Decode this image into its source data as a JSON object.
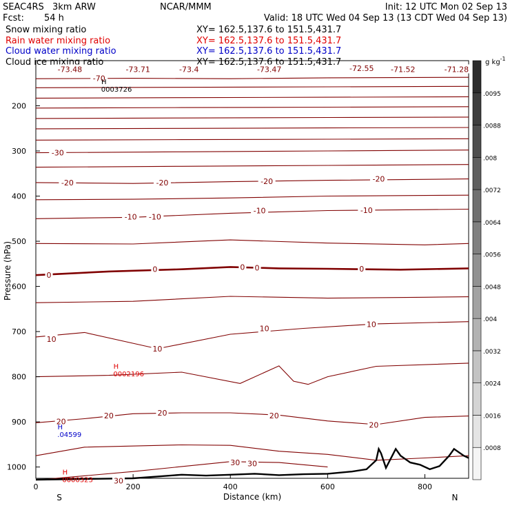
{
  "header": {
    "project": "SEAC4RS",
    "model": "3km ARW",
    "org": "NCAR/MMM",
    "init": "Init: 12 UTC Mon 02 Sep 13",
    "fcst_label": "Fcst:",
    "fcst_value": "54 h",
    "valid": "Valid: 18 UTC Wed 04 Sep 13 (13 CDT Wed 04 Sep 13)"
  },
  "fields": [
    {
      "name": "Snow mixing ratio",
      "xy": "XY= 162.5,137.6 to 151.5,431.7",
      "color": "#000000"
    },
    {
      "name": "Rain water mixing ratio",
      "xy": "XY= 162.5,137.6 to 151.5,431.7",
      "color": "#e00000"
    },
    {
      "name": "Cloud water mixing ratio",
      "xy": "XY= 162.5,137.6 to 151.5,431.7",
      "color": "#0000c8"
    },
    {
      "name": "Cloud ice mixing ratio",
      "xy": "XY= 162.5,137.6 to 151.5,431.7",
      "color": "#000000"
    }
  ],
  "colorbar": {
    "unit": "g kg",
    "unit_sup": "-1",
    "labels": [
      ".0008",
      ".0016",
      ".0024",
      ".0032",
      ".004",
      ".0048",
      ".0056",
      ".0064",
      ".0072",
      ".008",
      ".0088",
      ".0095"
    ]
  },
  "chart_data": {
    "type": "contour",
    "xlabel": "Distance (km)",
    "ylabel": "Pressure (hPa)",
    "xlim": [
      0,
      890
    ],
    "ylim": [
      1025,
      100
    ],
    "x_ticks": [
      0,
      200,
      400,
      600,
      800
    ],
    "y_ticks": [
      200,
      300,
      400,
      500,
      600,
      700,
      800,
      900,
      1000
    ],
    "x_end_labels": {
      "left": "S",
      "right": "N"
    },
    "temperature_contour_color": "#800000",
    "contour_labels": [
      {
        "text": "-73.48",
        "x": 70,
        "p": 119
      },
      {
        "text": "-73.71",
        "x": 210,
        "p": 119
      },
      {
        "text": "-73.4",
        "x": 315,
        "p": 119
      },
      {
        "text": "-73.47",
        "x": 480,
        "p": 119
      },
      {
        "text": "-72.55",
        "x": 670,
        "p": 117
      },
      {
        "text": "-71.52",
        "x": 755,
        "p": 119
      },
      {
        "text": "-71.28",
        "x": 865,
        "p": 119
      },
      {
        "text": "-70",
        "x": 130,
        "p": 139
      },
      {
        "text": "-30",
        "x": 45,
        "p": 304
      },
      {
        "text": "-20",
        "x": 65,
        "p": 370
      },
      {
        "text": "-20",
        "x": 260,
        "p": 370
      },
      {
        "text": "-20",
        "x": 475,
        "p": 367
      },
      {
        "text": "-20",
        "x": 705,
        "p": 362
      },
      {
        "text": "-10",
        "x": 195,
        "p": 446
      },
      {
        "text": "-10",
        "x": 245,
        "p": 446
      },
      {
        "text": "-10",
        "x": 460,
        "p": 432
      },
      {
        "text": "-10",
        "x": 680,
        "p": 431
      },
      {
        "text": "0",
        "x": 27,
        "p": 575
      },
      {
        "text": "0",
        "x": 245,
        "p": 562
      },
      {
        "text": "0",
        "x": 425,
        "p": 557
      },
      {
        "text": "0",
        "x": 455,
        "p": 559
      },
      {
        "text": "0",
        "x": 670,
        "p": 561
      },
      {
        "text": "10",
        "x": 32,
        "p": 717
      },
      {
        "text": "10",
        "x": 250,
        "p": 738
      },
      {
        "text": "10",
        "x": 470,
        "p": 693
      },
      {
        "text": "10",
        "x": 690,
        "p": 684
      },
      {
        "text": "20",
        "x": 52,
        "p": 899
      },
      {
        "text": "20",
        "x": 150,
        "p": 886
      },
      {
        "text": "20",
        "x": 260,
        "p": 880
      },
      {
        "text": "20",
        "x": 490,
        "p": 886
      },
      {
        "text": "20",
        "x": 695,
        "p": 907
      },
      {
        "text": "30",
        "x": 410,
        "p": 990
      },
      {
        "text": "30",
        "x": 445,
        "p": 992
      },
      {
        "text": "30",
        "x": 170,
        "p": 1030
      }
    ],
    "extrema": [
      {
        "label": "H",
        "value": "0003726",
        "x": 140,
        "p": 155,
        "color": "#000000"
      },
      {
        "label": "H",
        "value": "0002196",
        "x": 165,
        "p": 785,
        "color": "#e00000"
      },
      {
        "label": "H",
        "value": ".04599",
        "x": 50,
        "p": 920,
        "color": "#0000c8"
      },
      {
        "label": "H",
        "value": "0000323",
        "x": 60,
        "p": 1020,
        "color": "#e00000"
      }
    ],
    "temperature_isotherms": [
      {
        "level": -70,
        "bold": false,
        "points": [
          [
            0,
            140
          ],
          [
            200,
            139
          ],
          [
            400,
            140
          ],
          [
            600,
            138
          ],
          [
            890,
            137
          ]
        ]
      },
      {
        "level": -60,
        "bold": false,
        "points": [
          [
            0,
            160
          ],
          [
            300,
            159
          ],
          [
            600,
            158
          ],
          [
            890,
            157
          ]
        ]
      },
      {
        "level": -55,
        "bold": false,
        "points": [
          [
            0,
            183
          ],
          [
            300,
            182
          ],
          [
            600,
            181
          ],
          [
            890,
            180
          ]
        ]
      },
      {
        "level": -50,
        "bold": false,
        "points": [
          [
            0,
            205
          ],
          [
            300,
            204
          ],
          [
            600,
            203
          ],
          [
            890,
            202
          ]
        ]
      },
      {
        "level": -45,
        "bold": false,
        "points": [
          [
            0,
            228
          ],
          [
            300,
            227
          ],
          [
            600,
            226
          ],
          [
            890,
            225
          ]
        ]
      },
      {
        "level": -40,
        "bold": false,
        "points": [
          [
            0,
            251
          ],
          [
            300,
            250
          ],
          [
            600,
            249
          ],
          [
            890,
            248
          ]
        ]
      },
      {
        "level": -35,
        "bold": false,
        "points": [
          [
            0,
            276
          ],
          [
            300,
            275
          ],
          [
            600,
            274
          ],
          [
            890,
            273
          ]
        ]
      },
      {
        "level": -30,
        "bold": false,
        "points": [
          [
            0,
            304
          ],
          [
            300,
            302
          ],
          [
            600,
            300
          ],
          [
            890,
            298
          ]
        ]
      },
      {
        "level": -25,
        "bold": false,
        "points": [
          [
            0,
            336
          ],
          [
            300,
            334
          ],
          [
            600,
            332
          ],
          [
            890,
            330
          ]
        ]
      },
      {
        "level": -20,
        "bold": false,
        "points": [
          [
            0,
            370
          ],
          [
            200,
            372
          ],
          [
            400,
            368
          ],
          [
            600,
            365
          ],
          [
            890,
            362
          ]
        ]
      },
      {
        "level": -15,
        "bold": false,
        "points": [
          [
            0,
            408
          ],
          [
            200,
            407
          ],
          [
            400,
            404
          ],
          [
            600,
            400
          ],
          [
            890,
            398
          ]
        ]
      },
      {
        "level": -10,
        "bold": false,
        "points": [
          [
            0,
            450
          ],
          [
            200,
            447
          ],
          [
            400,
            438
          ],
          [
            600,
            432
          ],
          [
            800,
            430
          ],
          [
            890,
            429
          ]
        ]
      },
      {
        "level": -5,
        "bold": false,
        "points": [
          [
            0,
            505
          ],
          [
            200,
            506
          ],
          [
            400,
            497
          ],
          [
            600,
            504
          ],
          [
            800,
            508
          ],
          [
            890,
            505
          ]
        ]
      },
      {
        "level": 0,
        "bold": true,
        "points": [
          [
            0,
            575
          ],
          [
            150,
            567
          ],
          [
            300,
            562
          ],
          [
            400,
            557
          ],
          [
            500,
            560
          ],
          [
            600,
            561
          ],
          [
            750,
            563
          ],
          [
            890,
            560
          ]
        ]
      },
      {
        "level": 5,
        "bold": false,
        "points": [
          [
            0,
            636
          ],
          [
            200,
            633
          ],
          [
            400,
            622
          ],
          [
            600,
            626
          ],
          [
            800,
            624
          ],
          [
            890,
            623
          ]
        ]
      },
      {
        "level": 10,
        "bold": false,
        "points": [
          [
            0,
            712
          ],
          [
            100,
            702
          ],
          [
            250,
            738
          ],
          [
            400,
            706
          ],
          [
            550,
            693
          ],
          [
            700,
            683
          ],
          [
            890,
            678
          ]
        ]
      },
      {
        "level": 15,
        "bold": false,
        "points": [
          [
            0,
            800
          ],
          [
            150,
            797
          ],
          [
            300,
            790
          ],
          [
            420,
            815
          ],
          [
            500,
            776
          ],
          [
            530,
            810
          ],
          [
            560,
            817
          ],
          [
            600,
            800
          ],
          [
            700,
            777
          ],
          [
            890,
            770
          ]
        ]
      },
      {
        "level": 20,
        "bold": false,
        "points": [
          [
            0,
            902
          ],
          [
            100,
            893
          ],
          [
            200,
            882
          ],
          [
            300,
            880
          ],
          [
            400,
            880
          ],
          [
            500,
            885
          ],
          [
            600,
            898
          ],
          [
            700,
            906
          ],
          [
            800,
            890
          ],
          [
            890,
            887
          ]
        ]
      },
      {
        "level": 25,
        "bold": false,
        "points": [
          [
            0,
            975
          ],
          [
            100,
            956
          ],
          [
            300,
            951
          ],
          [
            400,
            952
          ],
          [
            500,
            965
          ],
          [
            600,
            972
          ],
          [
            700,
            985
          ],
          [
            800,
            980
          ],
          [
            890,
            975
          ]
        ]
      },
      {
        "level": 30,
        "bold": false,
        "points": [
          [
            0,
            1029
          ],
          [
            200,
            1010
          ],
          [
            400,
            988
          ],
          [
            500,
            990
          ],
          [
            600,
            1000
          ]
        ]
      }
    ],
    "terrain_surface": [
      [
        0,
        1028
      ],
      [
        200,
        1025
      ],
      [
        250,
        1021
      ],
      [
        300,
        1017
      ],
      [
        350,
        1019
      ],
      [
        400,
        1017
      ],
      [
        450,
        1015
      ],
      [
        500,
        1018
      ],
      [
        550,
        1016
      ],
      [
        600,
        1015
      ],
      [
        650,
        1010
      ],
      [
        680,
        1005
      ],
      [
        700,
        985
      ],
      [
        705,
        960
      ],
      [
        710,
        970
      ],
      [
        720,
        1002
      ],
      [
        740,
        960
      ],
      [
        750,
        975
      ],
      [
        770,
        990
      ],
      [
        790,
        995
      ],
      [
        810,
        1005
      ],
      [
        830,
        998
      ],
      [
        850,
        975
      ],
      [
        860,
        960
      ],
      [
        880,
        975
      ],
      [
        890,
        980
      ]
    ]
  }
}
